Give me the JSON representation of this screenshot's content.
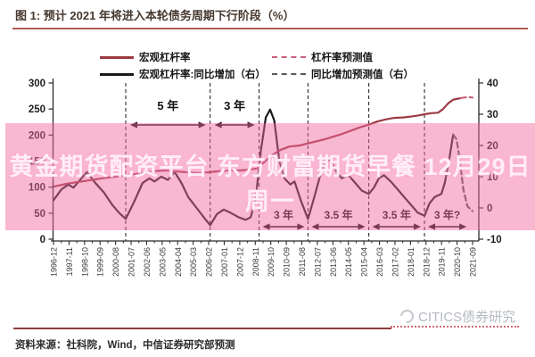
{
  "title": {
    "text": "图 1: 预计 2021 年将进入本轮债务周期下行阶段（%）"
  },
  "legend": [
    {
      "label": "宏观杠杆率",
      "style": "solid",
      "color": "#9c3b44"
    },
    {
      "label": "杠杆率预测值",
      "style": "dashed",
      "color": "#c9607a"
    },
    {
      "label": "宏观杠杆率:同比增加（右）",
      "style": "solid",
      "color": "#1b1b1b"
    },
    {
      "label": "同比增加预测值（右）",
      "style": "dashed",
      "color": "#585858"
    }
  ],
  "overlay": {
    "line1": "黄金期货配资平台 东方财富期货早餐 12月29日",
    "line2": "周一"
  },
  "watermark": {
    "text": "CITICS债券研究",
    "icon": "citics-lens-icon"
  },
  "source": {
    "text": "资料来源：社科院，Wind，中信证券研究部预测"
  },
  "colors": {
    "leverage_line": "#9c3b44",
    "leverage_forecast": "#c9607a",
    "yoy_line": "#1b1b1b",
    "yoy_forecast": "#585858",
    "axis": "#2a2a2a",
    "annotation": "#111111",
    "band_pink": "rgba(242,104,160,0.47)",
    "title_underline": "#b05c52",
    "bottom_rule": "#8f3e3e"
  },
  "chart_data": {
    "type": "line",
    "title": "预计 2021 年将进入本轮债务周期下行阶段（%）",
    "grid": false,
    "legend_position": "top",
    "left_axis": {
      "range": [
        0,
        300
      ],
      "ticks": [
        0,
        50,
        100,
        150,
        200,
        250,
        300
      ]
    },
    "right_axis": {
      "range": [
        -10,
        40
      ],
      "ticks": [
        -10,
        0,
        10,
        20,
        30,
        40
      ]
    },
    "x_axis": {
      "year_range": [
        1996.92,
        2021.75
      ],
      "labels": [
        "1996-12",
        "1997-11",
        "1998-10",
        "1999-09",
        "2000-08",
        "2001-07",
        "2002-06",
        "2003-05",
        "2004-04",
        "2005-03",
        "2006-02",
        "2007-01",
        "2007-12",
        "2008-11",
        "2009-10",
        "2010-09",
        "2011-08",
        "2012-07",
        "2013-06",
        "2014-05",
        "2015-04",
        "2016-03",
        "2017-02",
        "2018-01",
        "2018-12",
        "2019-11",
        "2020-10",
        "2021-09"
      ]
    },
    "cycle_boundaries": [
      2001.2,
      2006.2,
      2009.1,
      2012.0,
      2015.6,
      2018.9
    ],
    "annotations_top": [
      {
        "label": "5 年",
        "from": 2001.2,
        "to": 2006.2
      },
      {
        "label": "3 年",
        "from": 2006.2,
        "to": 2009.1
      }
    ],
    "annotations_bottom": [
      {
        "label": "3 年",
        "from": 2009.1,
        "to": 2012.0
      },
      {
        "label": "3.5 年",
        "from": 2012.0,
        "to": 2015.6
      },
      {
        "label": "3.5 年",
        "from": 2015.6,
        "to": 2018.9
      },
      {
        "label": "3 年?",
        "from": 2018.9,
        "to": 2021.6
      }
    ],
    "series": [
      {
        "name": "宏观杠杆率:同比增加（右）",
        "axis": "right",
        "style": "solid",
        "color": "#1b1b1b",
        "points": [
          [
            1996.92,
            2.5
          ],
          [
            1997.4,
            6
          ],
          [
            1997.8,
            7.5
          ],
          [
            1998.1,
            6.5
          ],
          [
            1998.5,
            9
          ],
          [
            1998.9,
            11.5
          ],
          [
            1999.4,
            8
          ],
          [
            1999.9,
            5
          ],
          [
            2000.4,
            1
          ],
          [
            2000.8,
            -1.5
          ],
          [
            2001.2,
            -3.5
          ],
          [
            2001.7,
            2
          ],
          [
            2002.2,
            8
          ],
          [
            2002.6,
            9.5
          ],
          [
            2002.9,
            8.5
          ],
          [
            2003.3,
            10
          ],
          [
            2003.7,
            9
          ],
          [
            2004.1,
            11.5
          ],
          [
            2004.5,
            8
          ],
          [
            2004.9,
            3.5
          ],
          [
            2005.4,
            0
          ],
          [
            2005.9,
            -3.5
          ],
          [
            2006.2,
            -5.5
          ],
          [
            2006.6,
            -2
          ],
          [
            2007.0,
            -0.5
          ],
          [
            2007.4,
            -1.5
          ],
          [
            2007.9,
            -3
          ],
          [
            2008.3,
            -3.8
          ],
          [
            2008.6,
            -3
          ],
          [
            2008.9,
            3
          ],
          [
            2009.2,
            18
          ],
          [
            2009.5,
            29
          ],
          [
            2009.75,
            31.5
          ],
          [
            2010.0,
            28
          ],
          [
            2010.3,
            15
          ],
          [
            2010.6,
            9.5
          ],
          [
            2010.95,
            7.5
          ],
          [
            2011.2,
            8.5
          ],
          [
            2011.6,
            2
          ],
          [
            2012.0,
            -3.5
          ],
          [
            2012.4,
            4
          ],
          [
            2012.7,
            10
          ],
          [
            2013.0,
            15
          ],
          [
            2013.3,
            15.5
          ],
          [
            2013.7,
            11.5
          ],
          [
            2014.0,
            9.5
          ],
          [
            2014.4,
            10.5
          ],
          [
            2014.8,
            8
          ],
          [
            2015.2,
            5.5
          ],
          [
            2015.6,
            4.5
          ],
          [
            2015.9,
            6.5
          ],
          [
            2016.2,
            9.5
          ],
          [
            2016.5,
            10.5
          ],
          [
            2016.9,
            8.5
          ],
          [
            2017.3,
            6
          ],
          [
            2017.7,
            3.5
          ],
          [
            2018.1,
            1
          ],
          [
            2018.5,
            -1.5
          ],
          [
            2018.9,
            -2.5
          ],
          [
            2019.2,
            1.5
          ],
          [
            2019.5,
            3.5
          ],
          [
            2019.9,
            4.5
          ],
          [
            2020.1,
            8
          ],
          [
            2020.35,
            15
          ],
          [
            2020.6,
            23.5
          ]
        ]
      },
      {
        "name": "同比增加预测值（右）",
        "axis": "right",
        "style": "dashed",
        "color": "#585858",
        "points": [
          [
            2020.6,
            23.5
          ],
          [
            2020.8,
            22
          ],
          [
            2021.0,
            15
          ],
          [
            2021.2,
            6
          ],
          [
            2021.45,
            0.5
          ],
          [
            2021.75,
            -1
          ]
        ]
      },
      {
        "name": "宏观杠杆率",
        "axis": "left",
        "style": "solid",
        "color": "#9c3b44",
        "points": [
          [
            1996.92,
            101
          ],
          [
            1997.8,
            107
          ],
          [
            1998.8,
            112
          ],
          [
            1999.8,
            117
          ],
          [
            2000.8,
            121
          ],
          [
            2001.5,
            124
          ],
          [
            2002.3,
            128
          ],
          [
            2003.0,
            131
          ],
          [
            2003.6,
            132
          ],
          [
            2004.3,
            130
          ],
          [
            2005.0,
            128
          ],
          [
            2005.6,
            127
          ],
          [
            2006.2,
            129
          ],
          [
            2006.8,
            131
          ],
          [
            2007.4,
            132
          ],
          [
            2008.0,
            132
          ],
          [
            2008.6,
            134
          ],
          [
            2009.0,
            136
          ],
          [
            2009.4,
            148
          ],
          [
            2009.9,
            162
          ],
          [
            2010.4,
            172
          ],
          [
            2010.9,
            178
          ],
          [
            2011.5,
            180
          ],
          [
            2012.0,
            184
          ],
          [
            2012.5,
            188
          ],
          [
            2013.0,
            192
          ],
          [
            2013.5,
            197
          ],
          [
            2014.0,
            202
          ],
          [
            2014.5,
            208
          ],
          [
            2015.0,
            214
          ],
          [
            2015.6,
            220
          ],
          [
            2016.1,
            226
          ],
          [
            2016.6,
            230
          ],
          [
            2017.1,
            233
          ],
          [
            2017.7,
            234
          ],
          [
            2018.2,
            236
          ],
          [
            2018.6,
            238
          ],
          [
            2018.9,
            240
          ],
          [
            2019.3,
            242
          ],
          [
            2019.7,
            243
          ],
          [
            2020.0,
            250
          ],
          [
            2020.3,
            261
          ],
          [
            2020.6,
            268
          ],
          [
            2020.9,
            270
          ],
          [
            2021.05,
            271
          ]
        ]
      },
      {
        "name": "杠杆率预测值",
        "axis": "left",
        "style": "dashed",
        "color": "#c9607a",
        "points": [
          [
            2021.05,
            271
          ],
          [
            2021.25,
            272
          ],
          [
            2021.5,
            273
          ],
          [
            2021.75,
            272
          ]
        ]
      }
    ]
  }
}
